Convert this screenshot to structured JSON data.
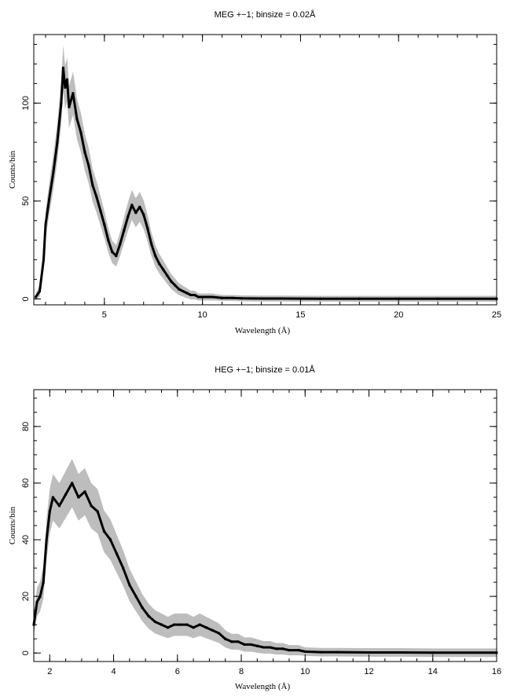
{
  "chart_data": [
    {
      "type": "line",
      "title": "MEG +−1; binsize = 0.02Å",
      "xlabel": "Wavelength (Å)",
      "ylabel": "Counts/bin",
      "xlim": [
        1.4,
        25
      ],
      "ylim": [
        -3,
        135
      ],
      "xticks": [
        5,
        10,
        15,
        20,
        25
      ],
      "yticks": [
        0,
        50,
        100
      ],
      "grid": false,
      "series": [
        {
          "x": [
            1.5,
            1.7,
            1.9,
            2.0,
            2.1,
            2.2,
            2.4,
            2.6,
            2.8,
            2.9,
            3.0,
            3.1,
            3.2,
            3.4,
            3.6,
            3.8,
            4.0,
            4.2,
            4.4,
            4.6,
            4.8,
            5.0,
            5.2,
            5.4,
            5.6,
            5.8,
            6.0,
            6.2,
            6.4,
            6.6,
            6.8,
            7.0,
            7.2,
            7.4,
            7.6,
            7.8,
            8.0,
            8.2,
            8.4,
            8.6,
            8.8,
            9.0,
            9.2,
            9.4,
            9.6,
            9.8,
            10.0,
            10.5,
            11.0,
            11.5,
            12.0,
            13.0,
            14.0,
            16.0,
            18.0,
            20.0,
            22.0,
            25.0
          ],
          "values": [
            1,
            4,
            20,
            38,
            45,
            52,
            65,
            80,
            100,
            118,
            108,
            112,
            98,
            105,
            92,
            85,
            75,
            68,
            58,
            52,
            45,
            38,
            30,
            24,
            22,
            28,
            35,
            42,
            48,
            44,
            47,
            43,
            36,
            28,
            22,
            18,
            15,
            12,
            9,
            7,
            5,
            4,
            3,
            2,
            2,
            1,
            1,
            1,
            0.5,
            0.5,
            0.3,
            0.2,
            0.2,
            0.1,
            0.1,
            0.1,
            0.1,
            0.1
          ]
        }
      ]
    },
    {
      "type": "line",
      "title": "HEG +−1; binsize = 0.01Å",
      "xlabel": "Wavelength (Å)",
      "ylabel": "Counts/bin",
      "xlim": [
        1.5,
        16
      ],
      "ylim": [
        -3,
        93
      ],
      "xticks": [
        2,
        4,
        6,
        8,
        10,
        12,
        14,
        16
      ],
      "yticks": [
        0,
        20,
        40,
        60,
        80
      ],
      "grid": false,
      "series": [
        {
          "x": [
            1.5,
            1.6,
            1.7,
            1.8,
            1.9,
            2.0,
            2.1,
            2.3,
            2.5,
            2.7,
            2.9,
            3.1,
            3.3,
            3.5,
            3.7,
            3.9,
            4.1,
            4.3,
            4.5,
            4.7,
            4.9,
            5.1,
            5.3,
            5.5,
            5.7,
            5.9,
            6.1,
            6.3,
            6.5,
            6.7,
            6.9,
            7.1,
            7.3,
            7.5,
            7.7,
            7.9,
            8.1,
            8.3,
            8.5,
            8.7,
            8.9,
            9.1,
            9.3,
            9.5,
            9.8,
            10.0,
            10.5,
            11.0,
            12.0,
            13.0,
            14.0,
            16.0
          ],
          "values": [
            10,
            18,
            20,
            25,
            40,
            50,
            55,
            52,
            56,
            60,
            55,
            57,
            52,
            50,
            43,
            40,
            35,
            30,
            24,
            20,
            16,
            13,
            11,
            10,
            9,
            10,
            10,
            10,
            9,
            10,
            9,
            8,
            7,
            5,
            4,
            4,
            3,
            3,
            2.5,
            2,
            2,
            1.5,
            1.5,
            1,
            1,
            0.5,
            0.3,
            0.3,
            0.2,
            0.2,
            0.1,
            0.1
          ]
        }
      ]
    }
  ]
}
